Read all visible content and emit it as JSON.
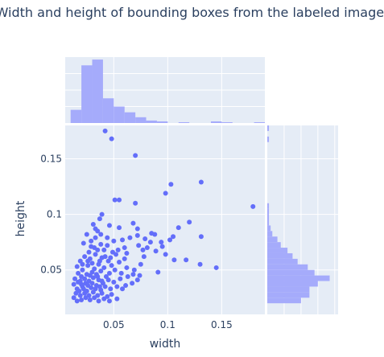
{
  "chart_data": {
    "type": "scatter",
    "title": "Width and height of bounding boxes from the labeled images",
    "xlabel": "width",
    "ylabel": "height",
    "xlim": [
      0.005,
      0.19
    ],
    "ylim": [
      0.01,
      0.18
    ],
    "x_ticks": [
      0.05,
      0.1,
      0.15
    ],
    "x_tick_labels": [
      "0.05",
      "0.1",
      "0.15"
    ],
    "y_ticks": [
      0.05,
      0.1,
      0.15
    ],
    "y_tick_labels": [
      "0.05",
      "0.1",
      "0.15"
    ],
    "marker_color": "#636efa",
    "hist_color": "#a5abfb",
    "plot_bg": "#e5ecf6",
    "grid": true,
    "marginal_x": {
      "type": "histogram",
      "bin_start": 0.01,
      "bin_width": 0.01,
      "counts": [
        16,
        70,
        77,
        30,
        20,
        13,
        7,
        3,
        2,
        0,
        1,
        0,
        0,
        2,
        1,
        0,
        0,
        1
      ]
    },
    "marginal_y": {
      "type": "histogram",
      "bin_start": 0.02,
      "bin_width": 0.005,
      "counts": [
        20,
        25,
        25,
        30,
        37,
        28,
        24,
        18,
        15,
        12,
        8,
        6,
        3,
        2,
        1,
        1,
        1,
        1,
        0,
        0,
        0,
        0,
        0,
        0,
        0,
        0,
        0,
        0,
        0,
        1,
        0,
        1
      ]
    },
    "points": [
      [
        0.042,
        0.175
      ],
      [
        0.048,
        0.168
      ],
      [
        0.07,
        0.153
      ],
      [
        0.103,
        0.127
      ],
      [
        0.098,
        0.119
      ],
      [
        0.131,
        0.129
      ],
      [
        0.051,
        0.113
      ],
      [
        0.055,
        0.113
      ],
      [
        0.07,
        0.11
      ],
      [
        0.179,
        0.107
      ],
      [
        0.039,
        0.1
      ],
      [
        0.037,
        0.096
      ],
      [
        0.031,
        0.091
      ],
      [
        0.033,
        0.087
      ],
      [
        0.035,
        0.085
      ],
      [
        0.046,
        0.09
      ],
      [
        0.055,
        0.088
      ],
      [
        0.068,
        0.092
      ],
      [
        0.072,
        0.087
      ],
      [
        0.085,
        0.083
      ],
      [
        0.088,
        0.082
      ],
      [
        0.094,
        0.075
      ],
      [
        0.102,
        0.077
      ],
      [
        0.105,
        0.08
      ],
      [
        0.131,
        0.08
      ],
      [
        0.079,
        0.078
      ],
      [
        0.084,
        0.075
      ],
      [
        0.072,
        0.081
      ],
      [
        0.065,
        0.079
      ],
      [
        0.058,
        0.077
      ],
      [
        0.05,
        0.076
      ],
      [
        0.044,
        0.079
      ],
      [
        0.038,
        0.073
      ],
      [
        0.029,
        0.076
      ],
      [
        0.025,
        0.082
      ],
      [
        0.022,
        0.074
      ],
      [
        0.027,
        0.066
      ],
      [
        0.032,
        0.07
      ],
      [
        0.041,
        0.068
      ],
      [
        0.049,
        0.066
      ],
      [
        0.06,
        0.07
      ],
      [
        0.073,
        0.072
      ],
      [
        0.077,
        0.068
      ],
      [
        0.089,
        0.067
      ],
      [
        0.098,
        0.064
      ],
      [
        0.106,
        0.059
      ],
      [
        0.117,
        0.059
      ],
      [
        0.13,
        0.055
      ],
      [
        0.145,
        0.052
      ],
      [
        0.091,
        0.048
      ],
      [
        0.075,
        0.055
      ],
      [
        0.069,
        0.05
      ],
      [
        0.06,
        0.06
      ],
      [
        0.052,
        0.064
      ],
      [
        0.045,
        0.058
      ],
      [
        0.039,
        0.061
      ],
      [
        0.033,
        0.064
      ],
      [
        0.028,
        0.06
      ],
      [
        0.023,
        0.062
      ],
      [
        0.019,
        0.058
      ],
      [
        0.016,
        0.053
      ],
      [
        0.021,
        0.05
      ],
      [
        0.026,
        0.054
      ],
      [
        0.03,
        0.056
      ],
      [
        0.036,
        0.055
      ],
      [
        0.041,
        0.052
      ],
      [
        0.048,
        0.054
      ],
      [
        0.055,
        0.057
      ],
      [
        0.062,
        0.052
      ],
      [
        0.068,
        0.046
      ],
      [
        0.074,
        0.045
      ],
      [
        0.072,
        0.041
      ],
      [
        0.063,
        0.044
      ],
      [
        0.057,
        0.047
      ],
      [
        0.051,
        0.05
      ],
      [
        0.046,
        0.047
      ],
      [
        0.043,
        0.044
      ],
      [
        0.038,
        0.049
      ],
      [
        0.034,
        0.046
      ],
      [
        0.03,
        0.048
      ],
      [
        0.025,
        0.046
      ],
      [
        0.02,
        0.044
      ],
      [
        0.017,
        0.047
      ],
      [
        0.014,
        0.042
      ],
      [
        0.019,
        0.04
      ],
      [
        0.023,
        0.042
      ],
      [
        0.027,
        0.04
      ],
      [
        0.031,
        0.043
      ],
      [
        0.036,
        0.041
      ],
      [
        0.04,
        0.038
      ],
      [
        0.045,
        0.041
      ],
      [
        0.05,
        0.039
      ],
      [
        0.056,
        0.042
      ],
      [
        0.061,
        0.036
      ],
      [
        0.067,
        0.038
      ],
      [
        0.058,
        0.033
      ],
      [
        0.053,
        0.035
      ],
      [
        0.047,
        0.033
      ],
      [
        0.042,
        0.035
      ],
      [
        0.038,
        0.032
      ],
      [
        0.034,
        0.036
      ],
      [
        0.029,
        0.034
      ],
      [
        0.025,
        0.031
      ],
      [
        0.021,
        0.035
      ],
      [
        0.016,
        0.033
      ],
      [
        0.013,
        0.037
      ],
      [
        0.015,
        0.029
      ],
      [
        0.019,
        0.027
      ],
      [
        0.023,
        0.029
      ],
      [
        0.027,
        0.027
      ],
      [
        0.031,
        0.03
      ],
      [
        0.035,
        0.027
      ],
      [
        0.039,
        0.029
      ],
      [
        0.044,
        0.026
      ],
      [
        0.048,
        0.028
      ],
      [
        0.053,
        0.024
      ],
      [
        0.046,
        0.022
      ],
      [
        0.041,
        0.024
      ],
      [
        0.036,
        0.022
      ],
      [
        0.032,
        0.025
      ],
      [
        0.028,
        0.023
      ],
      [
        0.024,
        0.025
      ],
      [
        0.02,
        0.023
      ],
      [
        0.016,
        0.022
      ],
      [
        0.013,
        0.025
      ],
      [
        0.018,
        0.031
      ],
      [
        0.022,
        0.033
      ],
      [
        0.026,
        0.036
      ],
      [
        0.03,
        0.038
      ],
      [
        0.033,
        0.033
      ],
      [
        0.037,
        0.035
      ],
      [
        0.039,
        0.04
      ],
      [
        0.035,
        0.044
      ],
      [
        0.028,
        0.045
      ],
      [
        0.024,
        0.038
      ],
      [
        0.02,
        0.037
      ],
      [
        0.017,
        0.039
      ],
      [
        0.032,
        0.051
      ],
      [
        0.037,
        0.058
      ],
      [
        0.042,
        0.062
      ],
      [
        0.026,
        0.058
      ],
      [
        0.021,
        0.055
      ],
      [
        0.047,
        0.061
      ],
      [
        0.054,
        0.068
      ],
      [
        0.044,
        0.072
      ],
      [
        0.035,
        0.068
      ],
      [
        0.029,
        0.071
      ],
      [
        0.038,
        0.082
      ],
      [
        0.033,
        0.079
      ],
      [
        0.062,
        0.065
      ],
      [
        0.078,
        0.062
      ],
      [
        0.081,
        0.07
      ],
      [
        0.095,
        0.071
      ],
      [
        0.11,
        0.088
      ],
      [
        0.12,
        0.093
      ]
    ]
  }
}
